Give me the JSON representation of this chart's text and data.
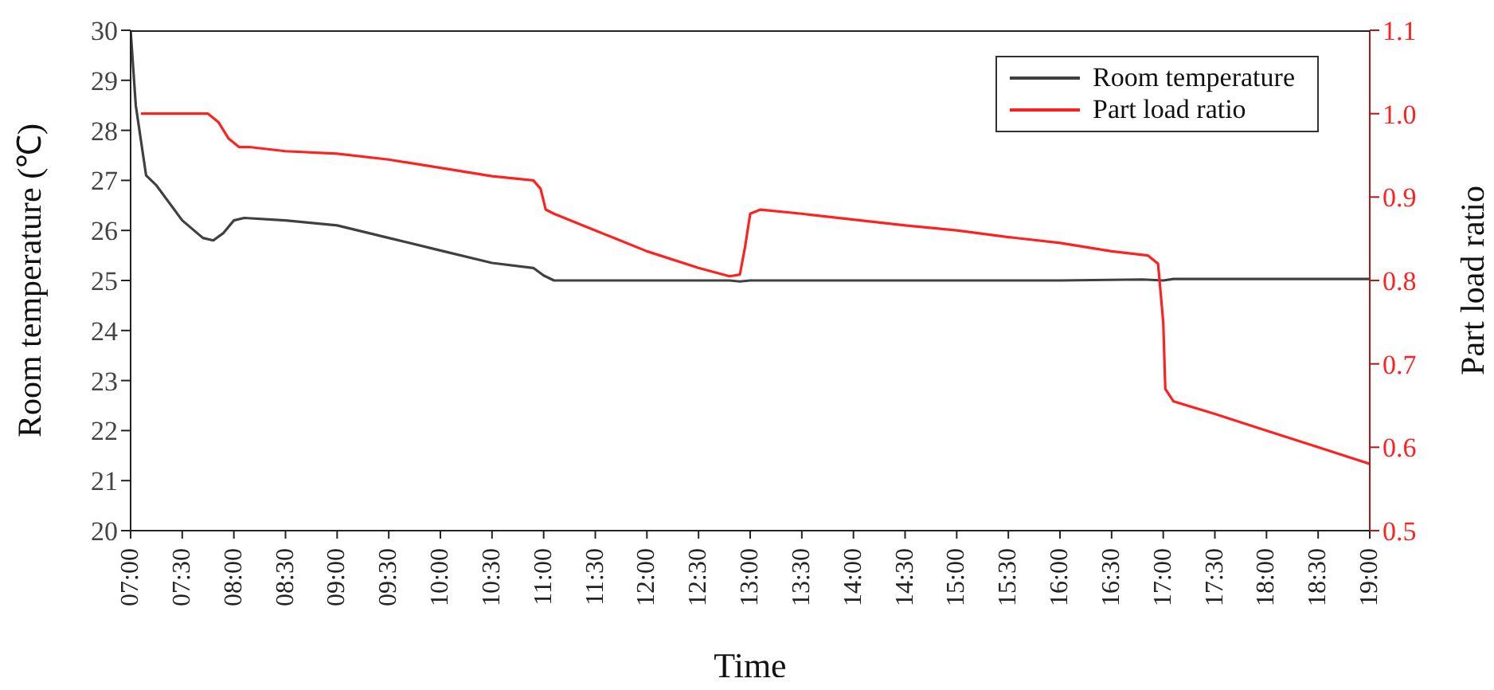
{
  "chart_data": {
    "type": "line",
    "xlabel": "Time",
    "ylabel": "Room temperature (℃)",
    "y2label": "Part load ratio",
    "xlim": [
      7,
      19
    ],
    "xticks": [
      {
        "value": 7,
        "label": "07:00"
      },
      {
        "value": 7.5,
        "label": "07:30"
      },
      {
        "value": 8,
        "label": "08:00"
      },
      {
        "value": 8.5,
        "label": "08:30"
      },
      {
        "value": 9,
        "label": "09:00"
      },
      {
        "value": 9.5,
        "label": "09:30"
      },
      {
        "value": 10,
        "label": "10:00"
      },
      {
        "value": 10.5,
        "label": "10:30"
      },
      {
        "value": 11,
        "label": "11:00"
      },
      {
        "value": 11.5,
        "label": "11:30"
      },
      {
        "value": 12,
        "label": "12:00"
      },
      {
        "value": 12.5,
        "label": "12:30"
      },
      {
        "value": 13,
        "label": "13:00"
      },
      {
        "value": 13.5,
        "label": "13:30"
      },
      {
        "value": 14,
        "label": "14:00"
      },
      {
        "value": 14.5,
        "label": "14:30"
      },
      {
        "value": 15,
        "label": "15:00"
      },
      {
        "value": 15.5,
        "label": "15:30"
      },
      {
        "value": 16,
        "label": "16:00"
      },
      {
        "value": 16.5,
        "label": "16:30"
      },
      {
        "value": 17,
        "label": "17:00"
      },
      {
        "value": 17.5,
        "label": "17:30"
      },
      {
        "value": 18,
        "label": "18:00"
      },
      {
        "value": 18.5,
        "label": "18:30"
      },
      {
        "value": 19,
        "label": "19:00"
      }
    ],
    "ylim": [
      20,
      30
    ],
    "yticks": [
      20,
      21,
      22,
      23,
      24,
      25,
      26,
      27,
      28,
      29,
      30
    ],
    "y2lim": [
      0.5,
      1.1
    ],
    "y2ticks": [
      0.5,
      0.6,
      0.7,
      0.8,
      0.9,
      {
        "value": 1,
        "label": "1.0"
      },
      1.1
    ],
    "grid": false,
    "legend": "top right",
    "marker": "none",
    "line_style": "solid",
    "series": [
      {
        "name": "Room temperature",
        "color": "#404040",
        "x": [
          7.0,
          7.05,
          7.15,
          7.25,
          7.5,
          7.7,
          7.8,
          7.9,
          8.0,
          8.1,
          8.5,
          9.0,
          9.5,
          10.0,
          10.5,
          10.9,
          11.0,
          11.1,
          12.0,
          12.8,
          12.9,
          13.0,
          14.0,
          15.0,
          16.0,
          16.8,
          17.0,
          17.1,
          18.0,
          19.0
        ],
        "values": [
          30,
          28.5,
          27.1,
          26.9,
          26.2,
          25.85,
          25.8,
          25.95,
          26.2,
          26.25,
          26.2,
          26.1,
          25.85,
          25.6,
          25.35,
          25.25,
          25.1,
          25.0,
          25.0,
          25.0,
          24.98,
          25.0,
          25.0,
          25.0,
          25.0,
          25.02,
          25.0,
          25.03,
          25.03,
          25.03
        ]
      },
      {
        "name": "Part load ratio",
        "color": "#ff2020",
        "axis": "y2",
        "x": [
          7.1,
          7.75,
          7.85,
          7.95,
          8.05,
          8.15,
          8.5,
          9.0,
          9.5,
          10.0,
          10.5,
          10.9,
          10.97,
          11.02,
          11.1,
          11.5,
          12.0,
          12.5,
          12.8,
          12.9,
          12.95,
          13.0,
          13.1,
          13.5,
          14.0,
          14.5,
          15.0,
          15.5,
          16.0,
          16.5,
          16.85,
          16.95,
          17.0,
          17.02,
          17.1,
          17.5,
          18.0,
          18.5,
          19.0
        ],
        "values": [
          1.0,
          1.0,
          0.99,
          0.97,
          0.96,
          0.96,
          0.955,
          0.952,
          0.945,
          0.935,
          0.925,
          0.92,
          0.91,
          0.885,
          0.88,
          0.86,
          0.835,
          0.815,
          0.805,
          0.807,
          0.84,
          0.88,
          0.885,
          0.88,
          0.873,
          0.866,
          0.86,
          0.852,
          0.845,
          0.835,
          0.83,
          0.82,
          0.75,
          0.67,
          0.655,
          0.64,
          0.62,
          0.6,
          0.58
        ]
      }
    ]
  }
}
